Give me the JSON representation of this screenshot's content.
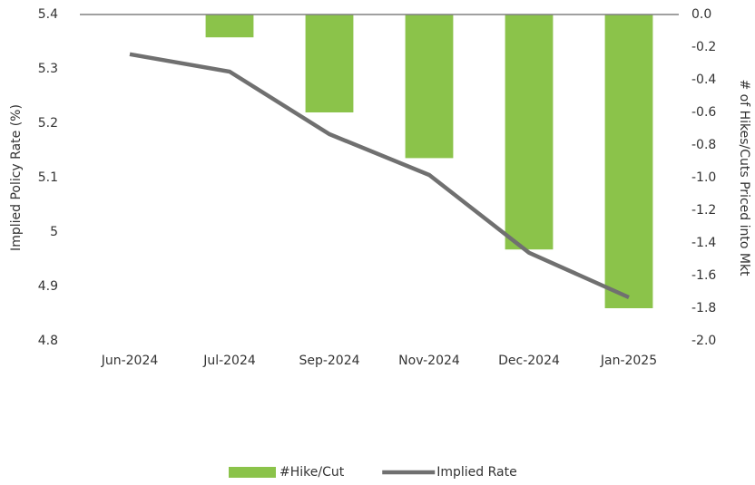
{
  "chart_data": {
    "type": "bar_line",
    "y_label": "Implied Policy Rate (%)",
    "y2_label": "# of Hikes/Cuts Priced into Mkt",
    "categories": [
      "Jun-2024",
      "Jul-2024",
      "Sep-2024",
      "Nov-2024",
      "Dec-2024",
      "Jan-2025"
    ],
    "series": [
      {
        "name": "#Hike/Cut",
        "type": "bar",
        "axis": "y2",
        "color": "#8bc34a",
        "values": [
          0,
          -0.14,
          -0.6,
          -0.88,
          -1.44,
          -1.8
        ]
      },
      {
        "name": "Implied Rate",
        "type": "line",
        "axis": "y",
        "color": "#707070",
        "values": [
          5.327,
          5.295,
          5.18,
          5.105,
          4.962,
          4.88
        ]
      }
    ],
    "ylim": [
      4.8,
      5.4
    ],
    "yticks": [
      5.4,
      5.3,
      5.2,
      5.1,
      5,
      4.9,
      4.8
    ],
    "y2lim": [
      -2.0,
      0.0
    ],
    "y2ticks": [
      {
        "value": 0,
        "label": "0.0"
      },
      -0.2,
      -0.4,
      -0.6,
      -0.8,
      {
        "value": -1,
        "label": "-1.0"
      },
      -1.2,
      -1.4,
      -1.6,
      -1.8,
      {
        "value": -2,
        "label": "-2.0"
      }
    ],
    "legend": "bottom",
    "grid": false
  }
}
